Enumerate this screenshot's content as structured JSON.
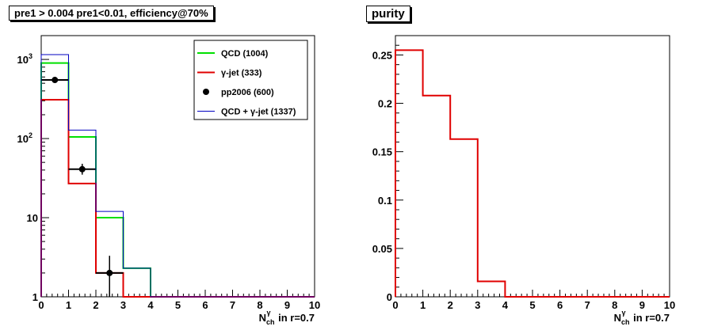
{
  "chart_data": [
    {
      "type": "line",
      "title": "pre1 > 0.004  pre1<0.01, efficiency@70%",
      "xlabel": "N_ch^γ in r=0.7",
      "xlabel_main": "N",
      "xlabel_sub": "ch",
      "xlabel_sup": "γ",
      "xlabel_rest": "in r=0.7",
      "xlim": [
        0,
        10
      ],
      "ylim": [
        1,
        2000
      ],
      "yscale": "log",
      "x_ticks": [
        "0",
        "1",
        "2",
        "3",
        "4",
        "5",
        "6",
        "7",
        "8",
        "9",
        "10"
      ],
      "y_ticks": [
        {
          "value": 1,
          "label": "1"
        },
        {
          "value": 10,
          "label": "10"
        },
        {
          "value": 100,
          "label": "10",
          "exp": "2"
        },
        {
          "value": 1000,
          "label": "10",
          "exp": "3"
        }
      ],
      "bin_edges": [
        0,
        1,
        2,
        3,
        4,
        5,
        6,
        7,
        8,
        9,
        10
      ],
      "legend_position": "top-right",
      "series": [
        {
          "name": "QCD (1004)",
          "color": "#00e000",
          "style": "histogram",
          "values": [
            900,
            105,
            10,
            2.3,
            1,
            1,
            1,
            1,
            1,
            1
          ]
        },
        {
          "name": "γ-jet (333)",
          "color": "#e00000",
          "style": "histogram",
          "values": [
            310,
            27,
            2,
            1,
            1,
            1,
            1,
            1,
            1,
            1
          ]
        },
        {
          "name": "pp2006 (600)",
          "color": "#000000",
          "style": "points",
          "x": [
            0.5,
            1.5,
            2.5
          ],
          "values": [
            550,
            41,
            2
          ],
          "err_low": [
            30,
            6,
            1
          ],
          "err_high": [
            30,
            7,
            1.3
          ]
        },
        {
          "name": "QCD + γ-jet (1337)",
          "color": "#0000c0",
          "style": "histogram",
          "values": [
            1150,
            128,
            12,
            2.3,
            1,
            1,
            1,
            1,
            1,
            1
          ]
        }
      ]
    },
    {
      "type": "line",
      "title": "purity",
      "xlabel": "N_ch^γ in r=0.7",
      "xlabel_main": "N",
      "xlabel_sub": "ch",
      "xlabel_sup": "γ",
      "xlabel_rest": "in r=0.7",
      "xlim": [
        0,
        10
      ],
      "ylim": [
        0,
        0.27
      ],
      "x_ticks": [
        "0",
        "1",
        "2",
        "3",
        "4",
        "5",
        "6",
        "7",
        "8",
        "9",
        "10"
      ],
      "y_ticks": [
        {
          "value": 0,
          "label": "0"
        },
        {
          "value": 0.05,
          "label": "0.05"
        },
        {
          "value": 0.1,
          "label": "0.1"
        },
        {
          "value": 0.15,
          "label": "0.15"
        },
        {
          "value": 0.2,
          "label": "0.2"
        },
        {
          "value": 0.25,
          "label": "0.25"
        }
      ],
      "bin_edges": [
        0,
        1,
        2,
        3,
        4,
        5,
        6,
        7,
        8,
        9,
        10
      ],
      "series": [
        {
          "color": "#e00000",
          "style": "histogram",
          "values": [
            0.255,
            0.208,
            0.163,
            0.016,
            0,
            0,
            0,
            0,
            0,
            0
          ]
        }
      ]
    }
  ]
}
